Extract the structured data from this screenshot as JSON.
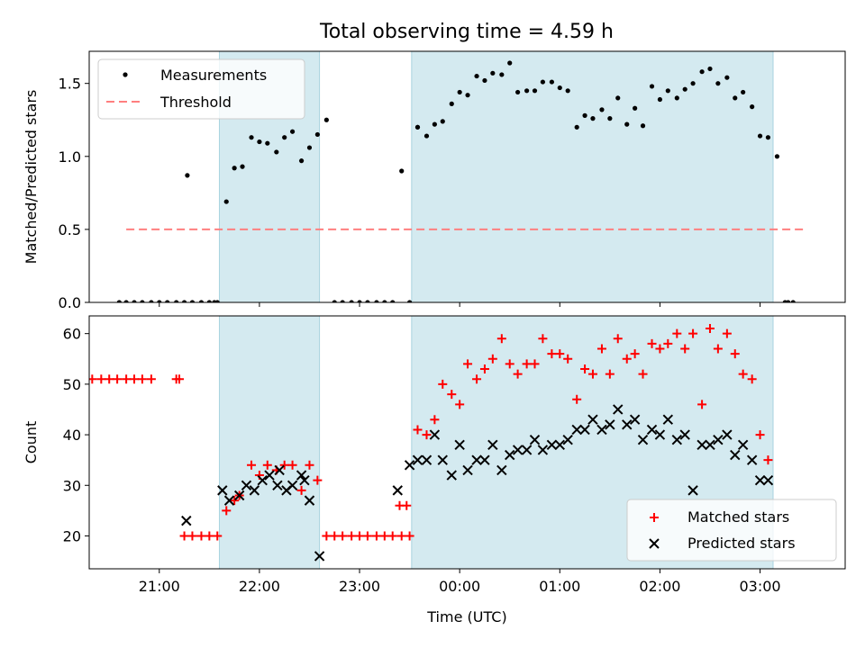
{
  "title": "Total observing time = 4.59 h",
  "colors": {
    "shade": "#d4eaf0",
    "shade_edge": "#a9d3df",
    "threshold": "#ff7f7f",
    "matched": "#ff0000",
    "predicted": "#000000",
    "measurement": "#000000"
  },
  "chart_data": [
    {
      "type": "scatter",
      "ylabel": "Matched/Predicted stars",
      "ylim": [
        0,
        1.72
      ],
      "yticks": [
        0.0,
        0.5,
        1.0,
        1.5
      ],
      "ytick_labels": [
        "0.0",
        "0.5",
        "1.0",
        "1.5"
      ],
      "xlim": [
        20.3,
        27.85
      ],
      "grid": false,
      "legend": {
        "position": "top-left",
        "entries": [
          "Measurements",
          "Threshold"
        ]
      },
      "threshold": {
        "name": "Threshold",
        "value": 0.5,
        "x": [
          20.67,
          27.47
        ]
      },
      "shaded_ranges": [
        [
          21.6,
          22.6
        ],
        [
          23.52,
          27.13
        ]
      ],
      "series": [
        {
          "name": "Measurements",
          "x": [
            20.67,
            20.75,
            20.83,
            20.92,
            21.0,
            21.08,
            21.17,
            21.33,
            21.42,
            21.58,
            21.67,
            21.75,
            21.83,
            21.92,
            22.0,
            22.08,
            22.17,
            22.25,
            22.33,
            22.42,
            22.5,
            22.58,
            22.67,
            22.75,
            22.83,
            22.92,
            23.0,
            23.08,
            23.17,
            23.25,
            23.33,
            23.42,
            23.5,
            23.58,
            23.67,
            23.75,
            23.83,
            23.92,
            24.0,
            24.08,
            24.17,
            24.25,
            24.33,
            24.42,
            24.5,
            24.58,
            24.67,
            24.75,
            24.83,
            24.92,
            25.0,
            25.08,
            25.17,
            25.25,
            25.33,
            25.42,
            25.5,
            25.58,
            25.67,
            25.75,
            25.83,
            25.92,
            26.0,
            26.08,
            26.17,
            26.25,
            26.33,
            26.42,
            26.5,
            26.58,
            26.67,
            26.75,
            26.83,
            26.92,
            27.0,
            27.08,
            27.17,
            27.25,
            27.33,
            21.28,
            21.5,
            21.55,
            20.6,
            21.25,
            23.58,
            27.28
          ],
          "y": [
            0,
            0,
            0,
            0,
            0,
            0,
            0,
            0,
            0,
            0,
            0.69,
            0.92,
            0.93,
            1.13,
            1.1,
            1.09,
            1.03,
            1.13,
            1.17,
            0.97,
            1.06,
            1.15,
            1.25,
            0,
            0,
            0,
            0,
            0,
            0,
            0,
            0,
            0.9,
            0,
            1.2,
            1.14,
            1.22,
            1.24,
            1.36,
            1.44,
            1.42,
            1.55,
            1.52,
            1.57,
            1.56,
            1.64,
            1.44,
            1.45,
            1.45,
            1.51,
            1.51,
            1.47,
            1.45,
            1.2,
            1.28,
            1.26,
            1.32,
            1.26,
            1.4,
            1.22,
            1.33,
            1.21,
            1.48,
            1.39,
            1.45,
            1.4,
            1.46,
            1.5,
            1.58,
            1.6,
            1.5,
            1.54,
            1.4,
            1.44,
            1.34,
            1.14,
            1.13,
            1.0,
            0,
            0,
            0.87,
            0,
            0,
            0,
            0,
            1.2,
            0
          ]
        }
      ]
    },
    {
      "type": "scatter",
      "xlabel": "Time (UTC)",
      "ylabel": "Count",
      "ylim": [
        13.5,
        63.5
      ],
      "yticks": [
        20,
        30,
        40,
        50,
        60
      ],
      "ytick_labels": [
        "20",
        "30",
        "40",
        "50",
        "60"
      ],
      "xlim": [
        20.3,
        27.85
      ],
      "xticks": [
        21,
        22,
        23,
        24,
        25,
        26,
        27
      ],
      "xtick_labels": [
        "21:00",
        "22:00",
        "23:00",
        "00:00",
        "01:00",
        "02:00",
        "03:00"
      ],
      "grid": false,
      "legend": {
        "position": "bottom-right",
        "entries": [
          "Matched stars",
          "Predicted stars"
        ]
      },
      "shaded_ranges": [
        [
          21.6,
          22.6
        ],
        [
          23.52,
          27.13
        ]
      ],
      "series": [
        {
          "name": "Matched stars",
          "x": [
            20.33,
            20.42,
            20.5,
            20.58,
            20.67,
            20.75,
            20.83,
            20.92,
            21.17,
            21.2,
            21.25,
            21.33,
            21.42,
            21.5,
            21.58,
            21.67,
            21.75,
            21.8,
            21.92,
            22.0,
            22.08,
            22.17,
            22.25,
            22.33,
            22.42,
            22.5,
            22.58,
            22.67,
            22.75,
            22.83,
            22.92,
            23.0,
            23.08,
            23.17,
            23.25,
            23.33,
            23.42,
            23.5,
            23.58,
            23.67,
            23.75,
            23.83,
            23.92,
            24.0,
            24.08,
            24.17,
            24.25,
            24.33,
            24.42,
            24.5,
            24.58,
            24.67,
            24.75,
            24.83,
            24.92,
            25.0,
            25.08,
            25.17,
            25.25,
            25.33,
            25.42,
            25.5,
            25.58,
            25.67,
            25.75,
            25.83,
            25.92,
            26.0,
            26.08,
            26.17,
            26.25,
            26.33,
            26.42,
            26.5,
            26.58,
            26.67,
            26.75,
            26.83,
            26.92,
            27.0,
            27.08,
            23.4,
            23.47
          ],
          "y": [
            51,
            51,
            51,
            51,
            51,
            51,
            51,
            51,
            51,
            51,
            20,
            20,
            20,
            20,
            20,
            25,
            27,
            28,
            34,
            32,
            34,
            33,
            34,
            34,
            29,
            34,
            31,
            20,
            20,
            20,
            20,
            20,
            20,
            20,
            20,
            20,
            20,
            20,
            41,
            40,
            43,
            50,
            48,
            46,
            54,
            51,
            53,
            55,
            59,
            54,
            52,
            54,
            54,
            59,
            56,
            56,
            55,
            47,
            53,
            52,
            57,
            52,
            59,
            55,
            56,
            52,
            58,
            57,
            58,
            60,
            57,
            60,
            46,
            61,
            57,
            60,
            56,
            52,
            51,
            40,
            35,
            26,
            26
          ]
        },
        {
          "name": "Predicted stars",
          "x": [
            21.27,
            21.63,
            21.7,
            21.8,
            21.87,
            21.95,
            22.03,
            22.1,
            22.18,
            22.27,
            22.33,
            22.42,
            22.5,
            22.6,
            23.38,
            23.5,
            23.58,
            23.67,
            23.75,
            23.83,
            23.92,
            24.0,
            24.08,
            24.17,
            24.25,
            24.33,
            24.42,
            24.5,
            24.58,
            24.67,
            24.75,
            24.83,
            24.92,
            25.0,
            25.08,
            25.17,
            25.25,
            25.33,
            25.42,
            25.5,
            25.58,
            25.67,
            25.75,
            25.83,
            25.92,
            26.0,
            26.08,
            26.17,
            26.25,
            26.33,
            26.42,
            26.5,
            26.58,
            26.67,
            26.75,
            26.83,
            26.92,
            27.0,
            27.08,
            22.2,
            22.45
          ],
          "y": [
            23,
            29,
            27,
            28,
            30,
            29,
            31,
            32,
            30,
            29,
            30,
            32,
            27,
            16,
            29,
            34,
            35,
            35,
            40,
            35,
            32,
            38,
            33,
            35,
            35,
            38,
            33,
            36,
            37,
            37,
            39,
            37,
            38,
            38,
            39,
            41,
            41,
            43,
            41,
            42,
            45,
            42,
            43,
            39,
            41,
            40,
            43,
            39,
            40,
            29,
            38,
            38,
            39,
            40,
            36,
            38,
            35,
            31,
            31,
            33,
            31
          ]
        }
      ]
    }
  ]
}
